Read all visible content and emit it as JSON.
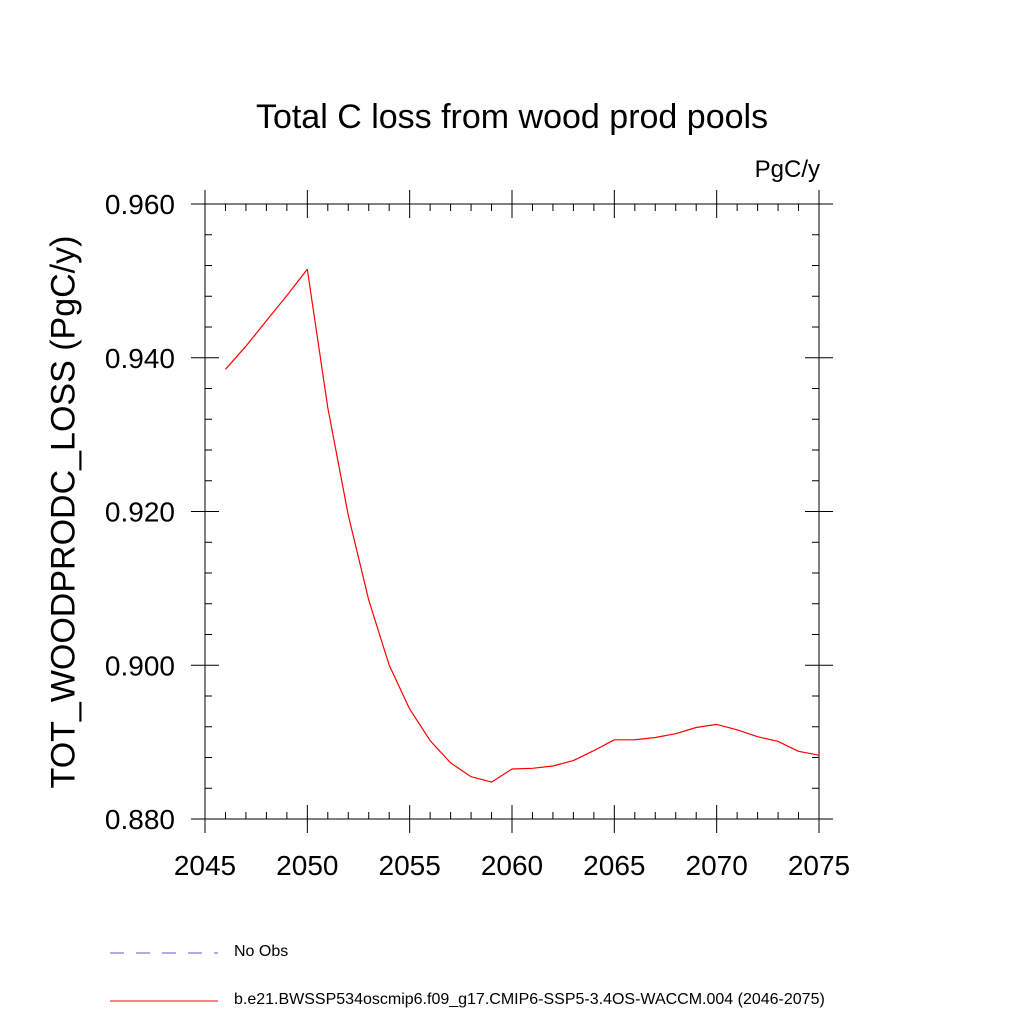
{
  "chart_data": {
    "type": "line",
    "title": "Total C loss from wood prod pools",
    "units_label": "PgC/y",
    "ylabel": "TOT_WOODPRODC_LOSS  (PgC/y)",
    "xlabel": "",
    "xlim": [
      2045,
      2075
    ],
    "ylim": [
      0.88,
      0.96
    ],
    "x_ticks": [
      "2045",
      "2050",
      "2055",
      "2060",
      "2065",
      "2070",
      "2075"
    ],
    "y_ticks": [
      "0.880",
      "0.900",
      "0.920",
      "0.940",
      "0.960"
    ],
    "grid": false,
    "legend_position": "bottom-left",
    "series": [
      {
        "name": "b.e21.BWSSP534oscmip6.f09_g17.CMIP6-SSP5-3.4OS-WACCM.004 (2046-2075)",
        "color": "#ff0000",
        "style": "solid",
        "x": [
          2046,
          2047,
          2048,
          2049,
          2050,
          2051,
          2052,
          2053,
          2054,
          2055,
          2056,
          2057,
          2058,
          2059,
          2060,
          2061,
          2062,
          2063,
          2064,
          2065,
          2066,
          2067,
          2068,
          2069,
          2070,
          2071,
          2072,
          2073,
          2074,
          2075
        ],
        "values": [
          0.9385,
          0.9415,
          0.9448,
          0.9481,
          0.9515,
          0.9335,
          0.9195,
          0.9085,
          0.9,
          0.8943,
          0.8902,
          0.8873,
          0.8855,
          0.8848,
          0.8865,
          0.8866,
          0.8869,
          0.8876,
          0.8889,
          0.8903,
          0.8903,
          0.8906,
          0.8911,
          0.8919,
          0.8923,
          0.8916,
          0.8907,
          0.8901,
          0.8888,
          0.8883
        ]
      }
    ],
    "legend": [
      {
        "label": "No Obs",
        "color": "#6a5acd",
        "style": "dashed"
      },
      {
        "label": "b.e21.BWSSP534oscmip6.f09_g17.CMIP6-SSP5-3.4OS-WACCM.004 (2046-2075)",
        "color": "#ff0000",
        "style": "solid"
      }
    ]
  }
}
